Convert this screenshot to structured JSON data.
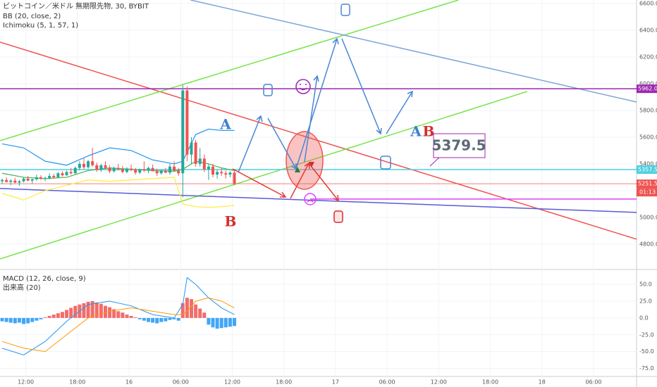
{
  "chart_data": [
    {
      "type": "candlestick",
      "title": "ビットコイン／米ドル 無期限先物, 30, BYBIT",
      "indicators": [
        "BB (20, close, 2)",
        "Ichimoku (5, 1, 57, 1)"
      ],
      "up_color": "#26a69a",
      "down_color": "#ef5350",
      "ylim": [
        4626,
        6626
      ],
      "yticks": [
        {
          "value": 4800,
          "label": "4800.0"
        },
        {
          "value": 5000,
          "label": "5000.0"
        },
        {
          "value": 5200,
          "label": "5200.0"
        },
        {
          "value": 5400,
          "label": "5400.0"
        },
        {
          "value": 5600,
          "label": "5600.0"
        },
        {
          "value": 5800,
          "label": "5800.0"
        },
        {
          "value": 6000,
          "label": "6000.0"
        },
        {
          "value": 6200,
          "label": "6200.0"
        },
        {
          "value": 6400,
          "label": "6400.0"
        },
        {
          "value": 6600,
          "label": "6600.0"
        }
      ],
      "xlim": [
        -0.5,
        147.5
      ],
      "xticks": [
        {
          "value": 5.5,
          "label": "12:00"
        },
        {
          "value": 17.5,
          "label": "18:00"
        },
        {
          "value": 29.5,
          "label": "16"
        },
        {
          "value": 41.5,
          "label": "06:00"
        },
        {
          "value": 53.5,
          "label": "12:00"
        },
        {
          "value": 65.5,
          "label": "18:00"
        },
        {
          "value": 77.5,
          "label": "17"
        },
        {
          "value": 89.5,
          "label": "06:00"
        },
        {
          "value": 101.5,
          "label": "12:00"
        },
        {
          "value": 113.5,
          "label": "18:00"
        },
        {
          "value": 125.5,
          "label": "18"
        },
        {
          "value": 137.5,
          "label": "06:00"
        }
      ],
      "open": [
        5270,
        5280,
        5265,
        5275,
        5260,
        5270,
        5290,
        5275,
        5285,
        5300,
        5290,
        5295,
        5310,
        5300,
        5330,
        5315,
        5340,
        5330,
        5370,
        5400,
        5375,
        5420,
        5390,
        5355,
        5390,
        5370,
        5345,
        5370,
        5360,
        5340,
        5365,
        5355,
        5335,
        5360,
        5350,
        5370,
        5345,
        5330,
        5350,
        5335,
        5380,
        5350,
        5330,
        5950,
        5470,
        5560,
        5400,
        5440,
        5360,
        5380,
        5320,
        5340,
        5330,
        5320,
        5335
      ],
      "high": [
        5290,
        5300,
        5285,
        5295,
        5280,
        5300,
        5310,
        5290,
        5320,
        5315,
        5305,
        5330,
        5325,
        5340,
        5345,
        5350,
        5370,
        5380,
        5420,
        5440,
        5430,
        5520,
        5410,
        5400,
        5420,
        5390,
        5380,
        5400,
        5385,
        5375,
        5395,
        5370,
        5365,
        5420,
        5380,
        5395,
        5365,
        5360,
        5370,
        5400,
        5420,
        5370,
        5990,
        5980,
        5600,
        5580,
        5520,
        5470,
        5400,
        5400,
        5360,
        5370,
        5350,
        5345,
        5350
      ],
      "low": [
        5250,
        5260,
        5240,
        5255,
        5235,
        5260,
        5270,
        5250,
        5275,
        5280,
        5270,
        5285,
        5290,
        5295,
        5305,
        5310,
        5320,
        5325,
        5350,
        5360,
        5365,
        5380,
        5340,
        5340,
        5360,
        5330,
        5335,
        5350,
        5330,
        5330,
        5345,
        5320,
        5325,
        5340,
        5330,
        5345,
        5310,
        5320,
        5330,
        5320,
        5340,
        5310,
        5150,
        5420,
        5400,
        5380,
        5380,
        5340,
        5280,
        5300,
        5290,
        5310,
        5290,
        5300,
        5240
      ],
      "close": [
        5280,
        5265,
        5275,
        5260,
        5270,
        5290,
        5275,
        5285,
        5300,
        5290,
        5295,
        5310,
        5300,
        5330,
        5315,
        5340,
        5330,
        5370,
        5400,
        5375,
        5420,
        5390,
        5355,
        5390,
        5370,
        5345,
        5370,
        5360,
        5340,
        5365,
        5355,
        5335,
        5360,
        5350,
        5370,
        5345,
        5330,
        5350,
        5335,
        5380,
        5350,
        5330,
        5950,
        5470,
        5560,
        5400,
        5440,
        5360,
        5380,
        5320,
        5340,
        5330,
        5320,
        5335,
        5251.5
      ],
      "bands": [
        {
          "name": "upper",
          "color": "#2196f3",
          "x": [
            0,
            5,
            10,
            15,
            20,
            25,
            30,
            35,
            40,
            42,
            45,
            48,
            51,
            54
          ],
          "values": [
            5550,
            5520,
            5420,
            5390,
            5460,
            5520,
            5500,
            5430,
            5400,
            5420,
            5620,
            5660,
            5650,
            5650
          ]
        },
        {
          "name": "basis",
          "color": "#4caf50",
          "x": [
            0,
            5,
            10,
            15,
            20,
            25,
            30,
            35,
            40,
            42,
            45,
            48,
            51,
            54
          ],
          "values": [
            5330,
            5300,
            5290,
            5300,
            5350,
            5370,
            5360,
            5350,
            5345,
            5360,
            5420,
            5400,
            5370,
            5350
          ]
        },
        {
          "name": "lower",
          "color": "#ffeb3b",
          "x": [
            0,
            5,
            10,
            15,
            20,
            25,
            30,
            35,
            40,
            42,
            45,
            48,
            51,
            54
          ],
          "values": [
            5180,
            5130,
            5200,
            5240,
            5280,
            5270,
            5280,
            5290,
            5300,
            5100,
            5080,
            5075,
            5080,
            5090
          ]
        }
      ],
      "drawings": [
        {
          "color": "#ef5350",
          "points": [
            [
              -0.5,
              6311
            ],
            [
              147.5,
              4837
            ]
          ]
        },
        {
          "color": "#76e44a",
          "points": [
            [
              -0.5,
              5574
            ],
            [
              106.1,
              6626
            ]
          ]
        },
        {
          "color": "#76e44a",
          "points": [
            [
              -0.5,
              4689
            ],
            [
              122.1,
              5942
            ]
          ]
        },
        {
          "color": "#7ea6d8",
          "points": [
            [
              43.8,
              6626
            ],
            [
              147.5,
              5863
            ]
          ]
        },
        {
          "color": "#5b5bd6",
          "points": [
            [
              -0.5,
              5216
            ],
            [
              147.5,
              5037
            ]
          ]
        },
        {
          "color": "#e040fb",
          "points": [
            [
              71.6,
              5137
            ],
            [
              147.5,
              5137
            ]
          ]
        }
      ],
      "levels": [
        {
          "value": 5962,
          "label": "5962.0",
          "color": "#9c27b0"
        },
        {
          "value": 5357.5,
          "label": "5357.5",
          "color": "#4dd0e1"
        },
        {
          "value": 5251.5,
          "label": "5251.5",
          "color": "#ef5350"
        }
      ],
      "countdown": "01:13",
      "annotations": [
        {
          "text": "A",
          "color": "#3f7fd0"
        },
        {
          "text": "B",
          "color": "#d32f2f"
        },
        {
          "text": "A",
          "color": "#3f7fd0"
        },
        {
          "text": "B",
          "color": "#d32f2f"
        }
      ],
      "callout": 5379.5
    },
    {
      "type": "macd",
      "title": "MACD (12, 26, close, 9)",
      "indicators": [
        "出来高 (20)"
      ],
      "ylim": [
        -87,
        70
      ],
      "yticks": [
        {
          "value": 50,
          "label": "50.0"
        },
        {
          "value": 25,
          "label": "25.0"
        },
        {
          "value": 0,
          "label": "0.0"
        },
        {
          "value": -25,
          "label": "-25.0"
        },
        {
          "value": -50,
          "label": "-50.0"
        },
        {
          "value": -75,
          "label": "-75.0"
        }
      ],
      "histogram": [
        -5,
        -6,
        -7,
        -8,
        -7,
        -9,
        -8,
        -6,
        -4,
        -2,
        1,
        3,
        5,
        7,
        9,
        12,
        15,
        18,
        20,
        22,
        24,
        25,
        23,
        21,
        18,
        16,
        13,
        10,
        8,
        5,
        3,
        1,
        -2,
        -4,
        -6,
        -7,
        -8,
        -6,
        -5,
        -3,
        -2,
        -4,
        22,
        30,
        28,
        20,
        14,
        8,
        -10,
        -14,
        -16,
        -15,
        -14,
        -13,
        -12
      ],
      "pos_color": "#ef5350",
      "neg_color": "#2196f3",
      "series": [
        {
          "name": "MACD",
          "color": "#2196f3",
          "x": [
            0,
            5,
            10,
            15,
            20,
            25,
            30,
            35,
            40,
            42,
            43,
            45,
            48,
            51,
            54
          ],
          "values": [
            -45,
            -55,
            -35,
            -5,
            20,
            25,
            18,
            5,
            0,
            20,
            60,
            50,
            30,
            15,
            5
          ]
        },
        {
          "name": "Signal",
          "color": "#ff9800",
          "x": [
            0,
            5,
            10,
            15,
            20,
            25,
            30,
            35,
            40,
            42,
            43,
            45,
            48,
            51,
            54
          ],
          "values": [
            -35,
            -45,
            -50,
            -25,
            0,
            10,
            15,
            10,
            5,
            5,
            10,
            25,
            30,
            25,
            15
          ]
        }
      ]
    }
  ]
}
